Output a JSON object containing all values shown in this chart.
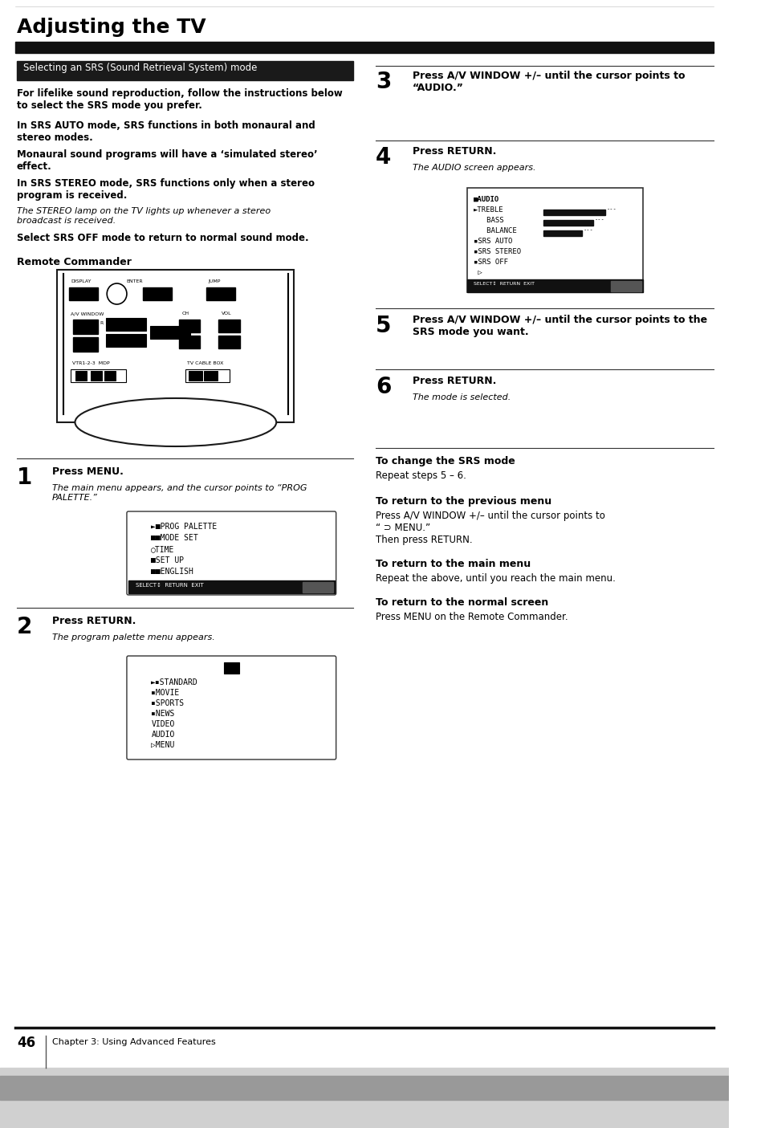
{
  "title": "Adjusting the TV",
  "section_header": "Selecting an SRS (Sound Retrieval System) mode",
  "bg_color": "#ffffff",
  "intro_para1": "For lifelike sound reproduction, follow the instructions below\nto select the SRS mode you prefer.",
  "intro_para2": "In SRS AUTO mode, SRS functions in both monaural and\nstereo modes.",
  "intro_para3": "Monaural sound programs will have a ‘simulated stereo’\neffect.",
  "intro_para4": "In SRS STEREO mode, SRS functions only when a stereo\nprogram is received.",
  "intro_italic": "The STEREO lamp on the TV lights up whenever a stereo\nbroadcast is received.",
  "intro_para5": "Select SRS OFF mode to return to normal sound mode.",
  "remote_label": "Remote Commander",
  "step1_bold": "Press MENU.",
  "step1_italic": "The main menu appears, and the cursor points to “PROG\nPALETTE.”",
  "step2_bold": "Press RETURN.",
  "step2_italic": "The program palette menu appears.",
  "step3_bold": "Press A/V WINDOW +/– until the cursor points to\n“AUDIO.”",
  "step4_bold": "Press RETURN.",
  "step4_italic": "The AUDIO screen appears.",
  "step5_bold": "Press A/V WINDOW +/– until the cursor points to the\nSRS mode you want.",
  "step6_bold": "Press RETURN.",
  "step6_italic": "The mode is selected.",
  "to_change_h": "To change the SRS mode",
  "to_change_t": "Repeat steps 5 – 6.",
  "to_prev_h": "To return to the previous menu",
  "to_prev_t1": "Press A/V WINDOW +/– until the cursor points to",
  "to_prev_t2": "“ ⊃ MENU.”",
  "to_prev_t3": "Then press RETURN.",
  "to_main_h": "To return to the main menu",
  "to_main_t": "Repeat the above, until you reach the main menu.",
  "to_normal_h": "To return to the normal screen",
  "to_normal_t": "Press MENU on the Remote Commander.",
  "footer_page": "46",
  "footer_chapter": "Chapter 3: Using Advanced Features"
}
